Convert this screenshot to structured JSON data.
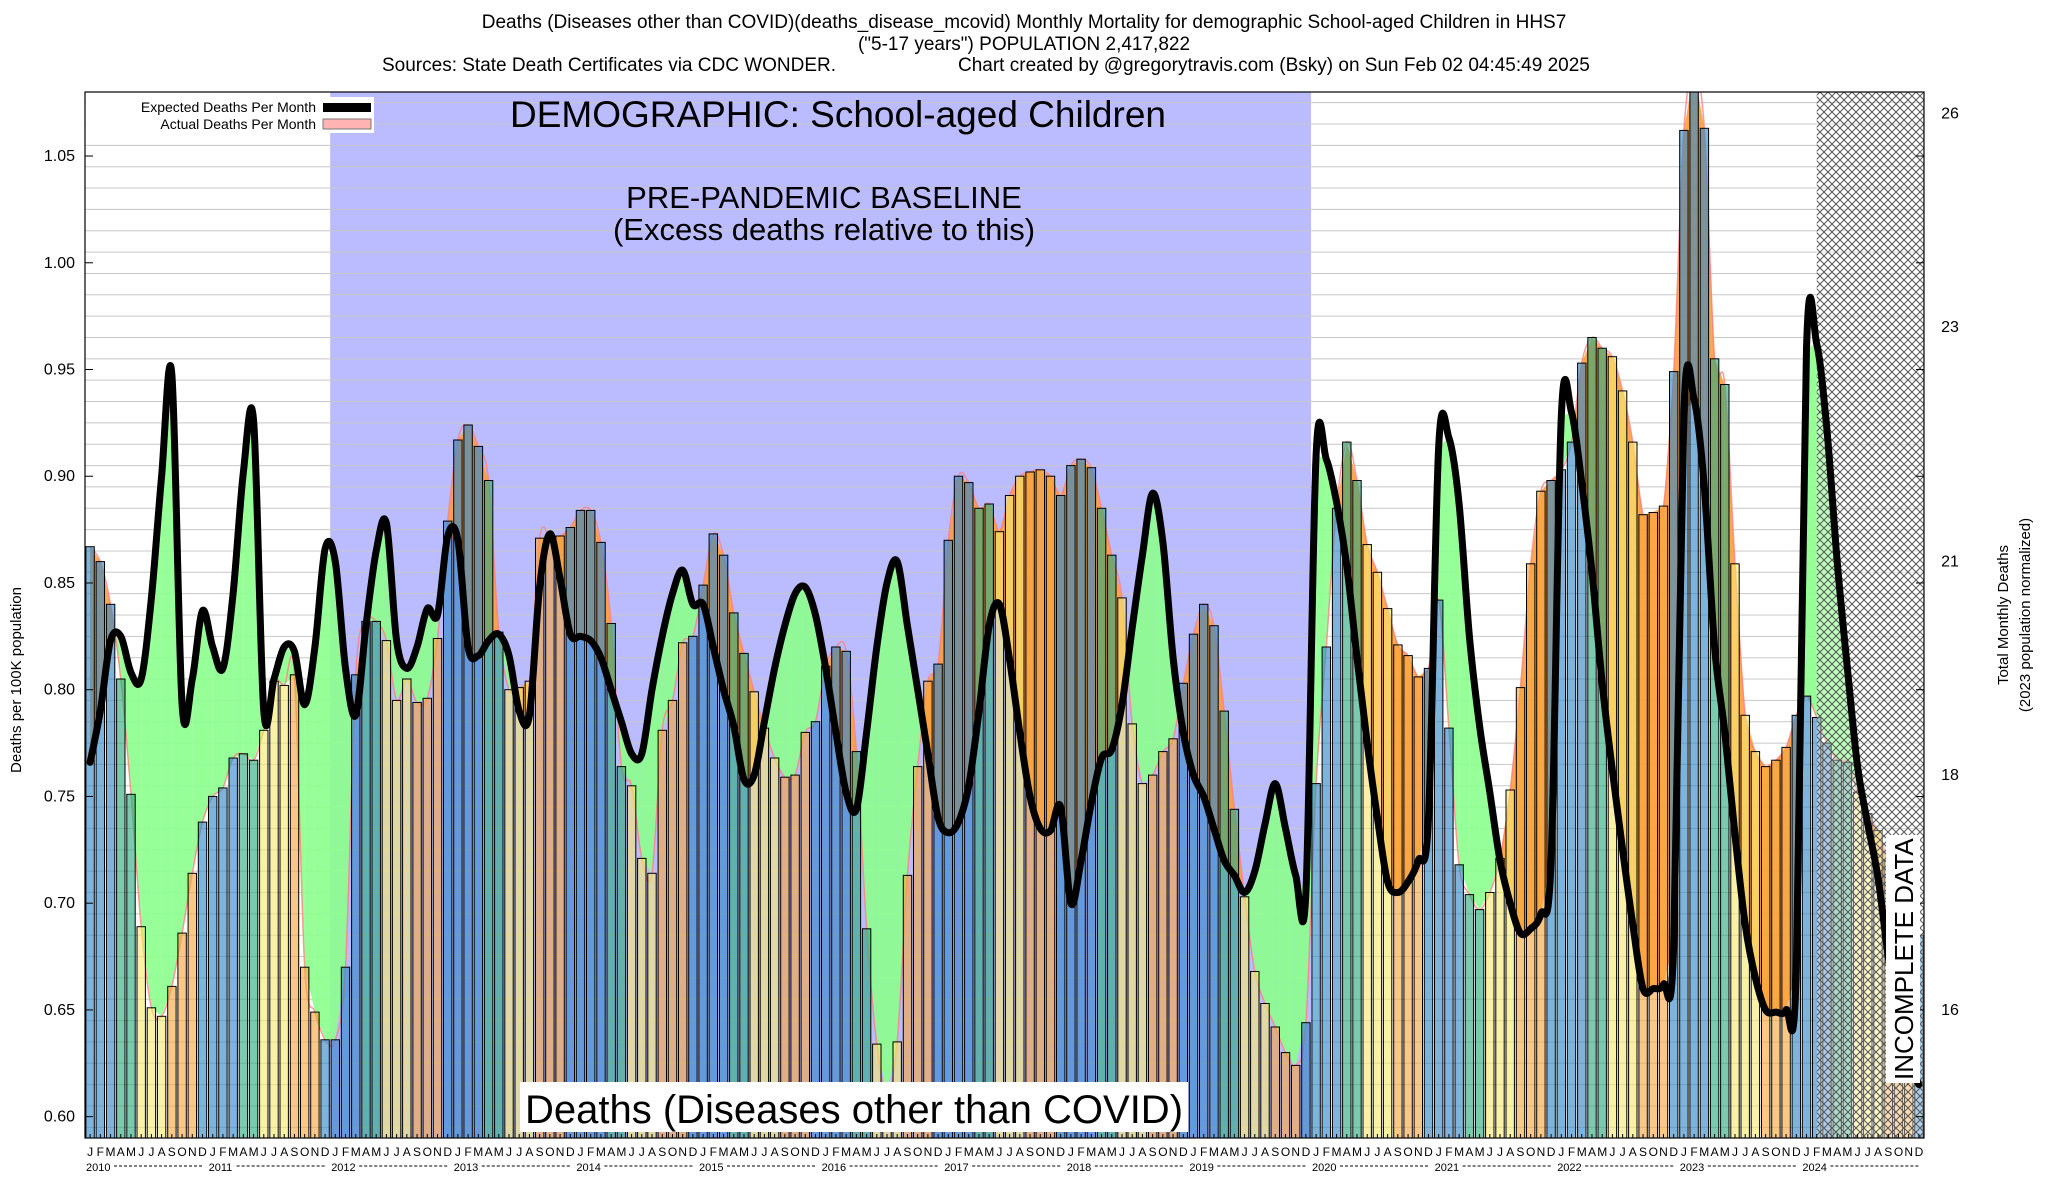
{
  "header": {
    "title_line1": "Deaths (Diseases other than COVID)(deaths_disease_mcovid) Monthly Mortality for demographic School-aged Children in HHS7",
    "title_line2": "(\"5-17 years\") POPULATION 2,417,822",
    "title_line3_left": "Sources: State Death Certificates via CDC WONDER.",
    "title_line3_right": "Chart created by @gregorytravis.com (Bsky) on Sun Feb 02 04:45:49 2025"
  },
  "annotations": {
    "demographic": "DEMOGRAPHIC: School-aged Children",
    "baseline_1": "PRE-PANDEMIC BASELINE",
    "baseline_2": "(Excess deaths relative to this)",
    "metric": "Deaths (Diseases other than COVID)",
    "incomplete": "INCOMPLETE DATA"
  },
  "legend": {
    "expected": "Expected Deaths Per Month",
    "actual": "Actual Deaths Per Month"
  },
  "colors": {
    "baseline_band": "#bbbbff",
    "expected_line": "#000000",
    "actual_area": "#ffb3b3",
    "excess_fill": "#ff9d3c",
    "deficit_fill": "#8cff8c",
    "winter_bar": "#2f86c6",
    "summer_bar": "#f5e870",
    "fall_bar": "#f5a63c",
    "spring_bar": "#2aa87d"
  },
  "chart_data": {
    "type": "bar",
    "ylabel_left": "Deaths per 100K population",
    "ylabel_right_1": "Total Monthly Deaths",
    "ylabel_right_2": "(2023 population normalized)",
    "ylim": [
      0.59,
      1.08
    ],
    "y_ticks": [
      "0.60",
      "0.65",
      "0.70",
      "0.75",
      "0.80",
      "0.85",
      "0.90",
      "0.95",
      "1.00",
      "1.05"
    ],
    "y_tick_values": [
      0.6,
      0.65,
      0.7,
      0.75,
      0.8,
      0.85,
      0.9,
      0.95,
      1.0,
      1.05
    ],
    "y2_ticks": [
      "16",
      "18",
      "21",
      "23",
      "26"
    ],
    "y2_tick_values": [
      0.65,
      0.76,
      0.86,
      0.97,
      1.07
    ],
    "month_letters": [
      "J",
      "F",
      "M",
      "A",
      "M",
      "J",
      "J",
      "A",
      "S",
      "O",
      "N",
      "D"
    ],
    "years": [
      "2010",
      "2011",
      "2012",
      "2013",
      "2014",
      "2015",
      "2016",
      "2017",
      "2018",
      "2019",
      "2020",
      "2021",
      "2022",
      "2023",
      "2024"
    ],
    "start": "2010-01",
    "baseline_period": [
      "2012-01",
      "2019-12"
    ],
    "incomplete_period": [
      "2024-03",
      "2024-12"
    ],
    "series": [
      {
        "name": "Actual Deaths Per Month",
        "values": [
          0.867,
          0.86,
          0.84,
          0.805,
          0.751,
          0.689,
          0.651,
          0.647,
          0.661,
          0.686,
          0.714,
          0.738,
          0.75,
          0.754,
          0.768,
          0.77,
          0.767,
          0.781,
          0.804,
          0.802,
          0.807,
          0.67,
          0.649,
          0.636,
          0.636,
          0.67,
          0.807,
          0.832,
          0.832,
          0.823,
          0.795,
          0.805,
          0.794,
          0.796,
          0.824,
          0.879,
          0.917,
          0.924,
          0.914,
          0.898,
          0.827,
          0.8,
          0.801,
          0.804,
          0.871,
          0.872,
          0.872,
          0.876,
          0.884,
          0.884,
          0.869,
          0.831,
          0.764,
          0.755,
          0.721,
          0.714,
          0.781,
          0.795,
          0.822,
          0.825,
          0.849,
          0.873,
          0.863,
          0.836,
          0.817,
          0.799,
          0.782,
          0.768,
          0.759,
          0.76,
          0.78,
          0.785,
          0.811,
          0.82,
          0.818,
          0.771,
          0.688,
          0.634,
          0.61,
          0.635,
          0.713,
          0.764,
          0.804,
          0.812,
          0.87,
          0.9,
          0.897,
          0.885,
          0.887,
          0.874,
          0.891,
          0.9,
          0.902,
          0.903,
          0.9,
          0.891,
          0.905,
          0.908,
          0.904,
          0.885,
          0.863,
          0.843,
          0.784,
          0.756,
          0.76,
          0.771,
          0.777,
          0.803,
          0.826,
          0.84,
          0.83,
          0.79,
          0.744,
          0.703,
          0.668,
          0.653,
          0.642,
          0.63,
          0.624,
          0.644,
          0.756,
          0.82,
          0.885,
          0.916,
          0.898,
          0.868,
          0.855,
          0.838,
          0.821,
          0.816,
          0.806,
          0.81,
          0.842,
          0.782,
          0.718,
          0.704,
          0.697,
          0.705,
          0.721,
          0.753,
          0.801,
          0.859,
          0.893,
          0.898,
          0.903,
          0.916,
          0.953,
          0.965,
          0.96,
          0.956,
          0.94,
          0.916,
          0.882,
          0.883,
          0.886,
          0.949,
          1.062,
          1.09,
          1.063,
          0.955,
          0.943,
          0.859,
          0.788,
          0.771,
          0.764,
          0.767,
          0.773,
          0.788,
          0.797,
          0.787,
          0.775,
          0.767,
          0.766,
          0.752,
          0.742,
          0.734,
          0.72,
          0.707,
          0.695,
          0.685
        ]
      },
      {
        "name": "Expected Deaths Per Month",
        "values": [
          0.766,
          0.79,
          0.823,
          0.825,
          0.808,
          0.805,
          0.843,
          0.9,
          0.948,
          0.793,
          0.805,
          0.837,
          0.82,
          0.81,
          0.845,
          0.902,
          0.926,
          0.79,
          0.805,
          0.82,
          0.818,
          0.793,
          0.82,
          0.866,
          0.86,
          0.81,
          0.788,
          0.83,
          0.865,
          0.878,
          0.823,
          0.81,
          0.82,
          0.838,
          0.835,
          0.872,
          0.87,
          0.82,
          0.816,
          0.823,
          0.826,
          0.816,
          0.79,
          0.788,
          0.848,
          0.873,
          0.852,
          0.826,
          0.825,
          0.823,
          0.815,
          0.8,
          0.785,
          0.77,
          0.77,
          0.8,
          0.825,
          0.845,
          0.856,
          0.84,
          0.84,
          0.82,
          0.8,
          0.783,
          0.758,
          0.76,
          0.785,
          0.81,
          0.83,
          0.845,
          0.848,
          0.835,
          0.81,
          0.78,
          0.752,
          0.744,
          0.78,
          0.82,
          0.85,
          0.86,
          0.83,
          0.8,
          0.77,
          0.74,
          0.733,
          0.738,
          0.755,
          0.79,
          0.83,
          0.84,
          0.814,
          0.78,
          0.75,
          0.735,
          0.734,
          0.745,
          0.7,
          0.72,
          0.747,
          0.768,
          0.772,
          0.793,
          0.829,
          0.863,
          0.892,
          0.869,
          0.815,
          0.78,
          0.76,
          0.75,
          0.735,
          0.72,
          0.713,
          0.705,
          0.715,
          0.737,
          0.756,
          0.735,
          0.713,
          0.705,
          0.91,
          0.908,
          0.888,
          0.858,
          0.815,
          0.775,
          0.74,
          0.71,
          0.705,
          0.71,
          0.72,
          0.74,
          0.914,
          0.918,
          0.887,
          0.825,
          0.783,
          0.752,
          0.72,
          0.7,
          0.686,
          0.688,
          0.695,
          0.72,
          0.928,
          0.93,
          0.897,
          0.855,
          0.803,
          0.762,
          0.725,
          0.69,
          0.66,
          0.66,
          0.662,
          0.68,
          0.93,
          0.936,
          0.895,
          0.82,
          0.78,
          0.732,
          0.69,
          0.665,
          0.65,
          0.649,
          0.65,
          0.668,
          0.96,
          0.962,
          0.922,
          0.86,
          0.81,
          0.764,
          0.737,
          0.712,
          0.675,
          0.645,
          0.625,
          0.615
        ]
      }
    ]
  }
}
